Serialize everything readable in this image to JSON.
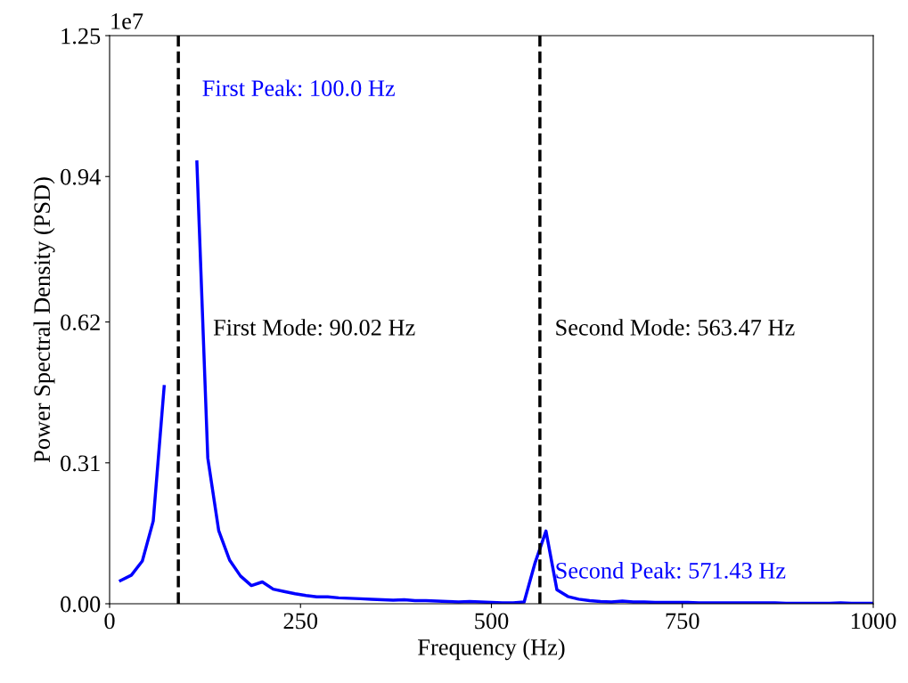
{
  "chart_data": {
    "type": "line",
    "xlabel": "Frequency (Hz)",
    "ylabel": "Power Spectral Density (PSD)",
    "x": [
      14.29,
      28.57,
      42.86,
      57.14,
      71.43,
      85.71,
      100,
      114.29,
      128.57,
      142.86,
      157.14,
      171.43,
      185.71,
      200,
      214.29,
      228.57,
      242.86,
      257.14,
      271.43,
      285.71,
      300,
      314.29,
      328.57,
      342.86,
      357.14,
      371.43,
      385.71,
      400,
      414.29,
      428.57,
      442.86,
      457.14,
      471.43,
      485.71,
      500,
      514.29,
      528.57,
      542.86,
      557.14,
      571.43,
      585.71,
      600,
      614.29,
      628.57,
      642.86,
      657.14,
      671.43,
      685.71,
      700,
      714.29,
      728.57,
      742.86,
      757.14,
      771.43,
      785.71,
      800,
      814.29,
      828.57,
      842.86,
      857.14,
      871.43,
      885.71,
      900,
      914.29,
      928.57,
      942.86,
      957.14,
      971.43,
      985.71,
      1000
    ],
    "series": [
      {
        "color": "#0000ff",
        "values": [
          0.051,
          0.063,
          0.094,
          0.182,
          0.478,
          null,
          null,
          0.972,
          0.321,
          0.161,
          0.096,
          0.061,
          0.04,
          0.048,
          0.032,
          0.027,
          0.022,
          0.018,
          0.015,
          0.015,
          0.013,
          0.012,
          0.011,
          0.01,
          0.009,
          0.008,
          0.009,
          0.007,
          0.007,
          0.006,
          0.005,
          0.004,
          0.005,
          0.004,
          0.003,
          0.002,
          0.002,
          0.004,
          0.09,
          0.16,
          0.031,
          0.016,
          0.01,
          0.007,
          0.005,
          0.004,
          0.006,
          0.004,
          0.004,
          0.003,
          0.003,
          0.003,
          0.003,
          0.002,
          0.002,
          0.002,
          0.002,
          0.002,
          0.002,
          0.002,
          0.002,
          0.001,
          0.001,
          0.001,
          0.001,
          0.001,
          0.002,
          0.001,
          0.001,
          0.001
        ]
      }
    ],
    "xlim": [
      0,
      1000
    ],
    "xticks": [
      0,
      250,
      500,
      750,
      1000
    ],
    "ylim": [
      0,
      1.25
    ],
    "yticks": [
      {
        "value": 0,
        "label": "0.00"
      },
      0.31,
      0.62,
      0.94,
      1.25
    ],
    "ref_lines": [
      {
        "axis": "x",
        "value": 90.02,
        "label": "First Mode: 90.02 Hz",
        "color": "#000000",
        "line_style": "dashed"
      },
      {
        "axis": "x",
        "value": 563.47,
        "label": "Second Mode: 563.47 Hz",
        "color": "#000000",
        "line_style": "dashed"
      }
    ],
    "annotations": [
      "First Peak: 100.0 Hz",
      "Second Peak: 571.43 Hz",
      "1e7"
    ],
    "grid": false,
    "legend": false
  }
}
